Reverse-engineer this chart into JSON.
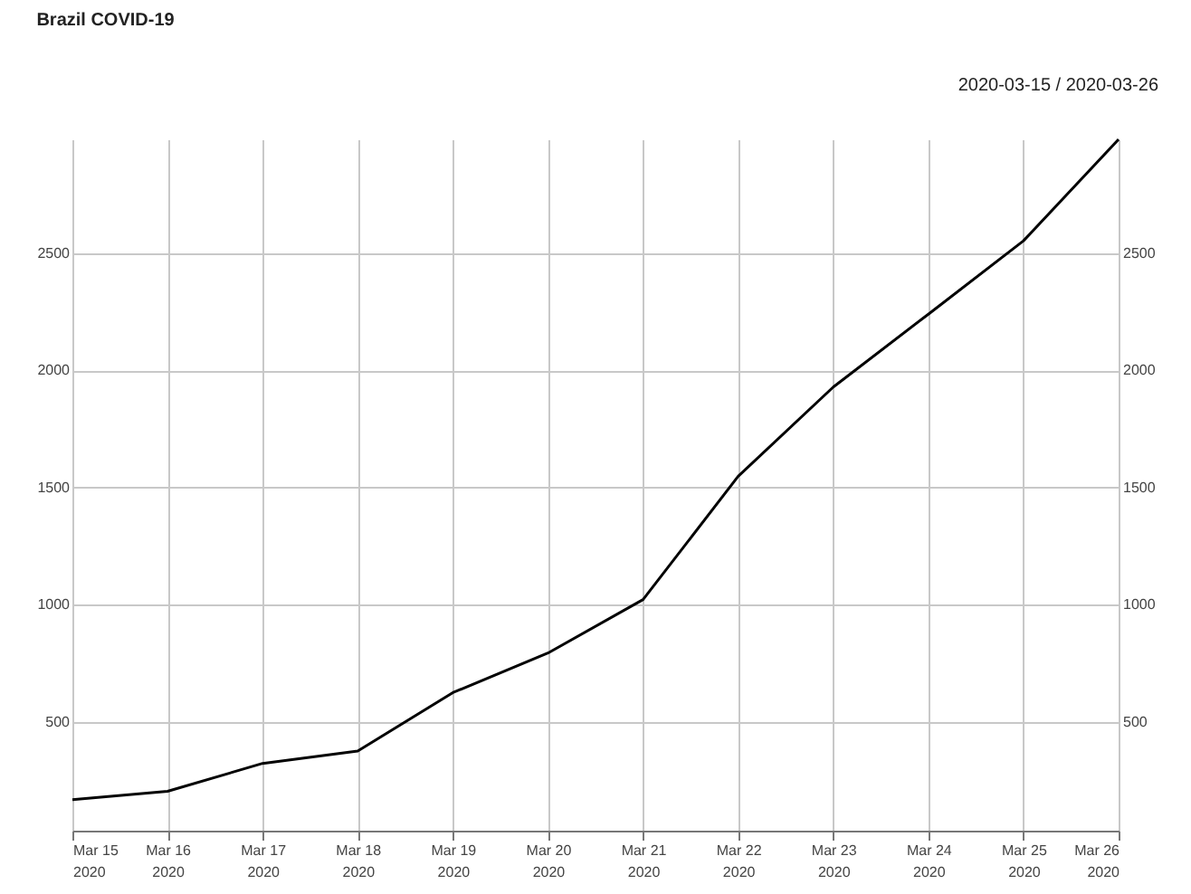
{
  "chart_data": {
    "type": "line",
    "title": "Brazil COVID-19",
    "subtitle": "2020-03-15 / 2020-03-26",
    "x": [
      "2020-03-15",
      "2020-03-16",
      "2020-03-17",
      "2020-03-18",
      "2020-03-19",
      "2020-03-20",
      "2020-03-21",
      "2020-03-22",
      "2020-03-23",
      "2020-03-24",
      "2020-03-25",
      "2020-03-26"
    ],
    "series": [
      {
        "color": "#000000",
        "values": [
          167,
          203,
          322,
          375,
          624,
          793,
          1021,
          1547,
          1928,
          2239,
          2552,
          2985
        ]
      }
    ],
    "xlim": [
      "2020-03-15",
      "2020-03-26"
    ],
    "xticks": [
      {
        "value": "2020-03-15",
        "label": "Mar 15\n2020"
      },
      {
        "value": "2020-03-16",
        "label": "Mar 16\n2020"
      },
      {
        "value": "2020-03-17",
        "label": "Mar 17\n2020"
      },
      {
        "value": "2020-03-18",
        "label": "Mar 18\n2020"
      },
      {
        "value": "2020-03-19",
        "label": "Mar 19\n2020"
      },
      {
        "value": "2020-03-20",
        "label": "Mar 20\n2020"
      },
      {
        "value": "2020-03-21",
        "label": "Mar 21\n2020"
      },
      {
        "value": "2020-03-22",
        "label": "Mar 22\n2020"
      },
      {
        "value": "2020-03-23",
        "label": "Mar 23\n2020"
      },
      {
        "value": "2020-03-24",
        "label": "Mar 24\n2020"
      },
      {
        "value": "2020-03-25",
        "label": "Mar 25\n2020"
      },
      {
        "value": "2020-03-26",
        "label": "Mar 26\n2020"
      }
    ],
    "ylim": [
      35,
      2985
    ],
    "yticks": [
      500,
      1000,
      1500,
      2000,
      2500
    ],
    "y2lim": [
      35,
      2985
    ],
    "y2ticks": [
      500,
      1000,
      1500,
      2000,
      2500
    ],
    "grid": true,
    "marker": "none",
    "line_style": "solid"
  }
}
